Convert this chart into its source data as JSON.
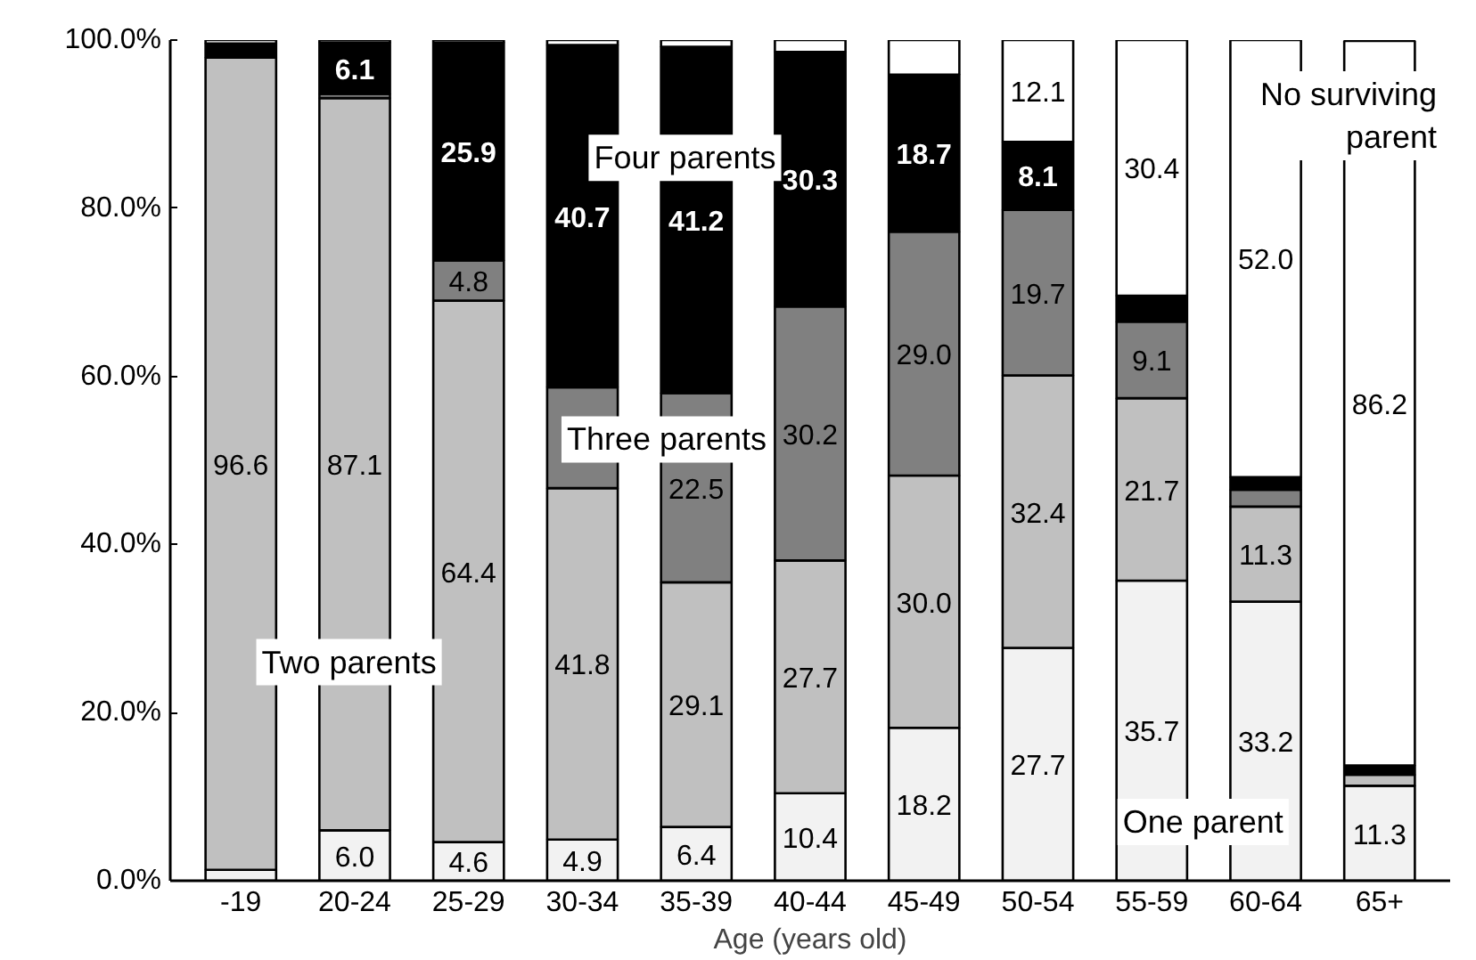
{
  "chart_data": {
    "type": "bar",
    "stacked": true,
    "xlabel": "Age (years old)",
    "categories": [
      "-19",
      "20-24",
      "25-29",
      "30-34",
      "35-39",
      "40-44",
      "45-49",
      "50-54",
      "55-59",
      "60-64",
      "65+"
    ],
    "ylim": [
      0,
      100
    ],
    "yticks": [
      {
        "value": 0,
        "label": "0.0%"
      },
      {
        "value": 20,
        "label": "20.0%"
      },
      {
        "value": 40,
        "label": "40.0%"
      },
      {
        "value": 60,
        "label": "60.0%"
      },
      {
        "value": 80,
        "label": "80.0%"
      },
      {
        "value": 100,
        "label": "100.0%"
      }
    ],
    "grid": false,
    "legend": false,
    "series": [
      {
        "name": "One parent",
        "color": "#f2f2f2",
        "values": [
          1.3,
          6.0,
          4.6,
          4.9,
          6.4,
          10.4,
          18.2,
          27.7,
          35.7,
          33.2,
          11.3
        ],
        "value_labels": [
          null,
          "6.0",
          "4.6",
          "4.9",
          "6.4",
          "10.4",
          "18.2",
          "27.7",
          "35.7",
          "33.2",
          "11.3"
        ]
      },
      {
        "name": "Two parents",
        "color": "#c0c0c0",
        "values": [
          96.6,
          87.1,
          64.4,
          41.8,
          29.1,
          27.7,
          30.0,
          32.4,
          21.7,
          11.3,
          1.3
        ],
        "value_labels": [
          "96.6",
          "87.1",
          "64.4",
          "41.8",
          "29.1",
          "27.7",
          "30.0",
          "32.4",
          "21.7",
          "11.3",
          null
        ]
      },
      {
        "name": "Three parents",
        "color": "#808080",
        "values": [
          0.0,
          0.5,
          4.8,
          12.0,
          22.5,
          30.2,
          29.0,
          19.7,
          9.1,
          2.0,
          null
        ],
        "value_labels": [
          null,
          null,
          "4.8",
          null,
          "22.5",
          "30.2",
          "29.0",
          "19.7",
          "9.1",
          null,
          null
        ]
      },
      {
        "name": "Four parents",
        "color": "#000000",
        "values": [
          1.7,
          6.1,
          25.9,
          40.7,
          41.2,
          30.3,
          18.7,
          8.1,
          3.1,
          1.5,
          1.1
        ],
        "value_labels": [
          null,
          "6.1",
          "25.9",
          "40.7",
          "41.2",
          "30.3",
          "18.7",
          "8.1",
          null,
          null,
          null
        ]
      },
      {
        "name": "No surviving parent",
        "color": "#ffffff",
        "values": [
          0.4,
          0.3,
          0.3,
          0.6,
          0.8,
          1.4,
          4.1,
          12.1,
          30.4,
          52.0,
          86.2
        ],
        "value_labels": [
          null,
          null,
          null,
          null,
          null,
          null,
          null,
          "12.1",
          "30.4",
          "52.0",
          "86.2"
        ]
      }
    ]
  }
}
